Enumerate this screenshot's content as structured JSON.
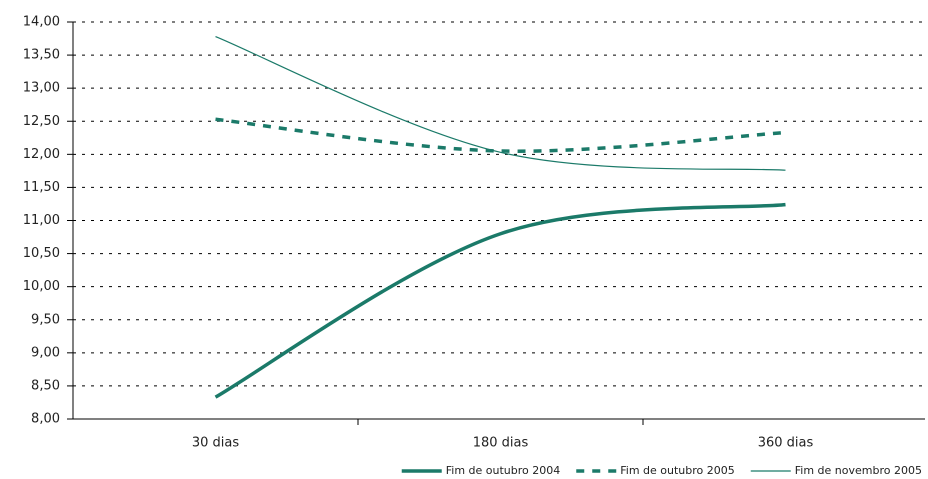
{
  "chart_data": {
    "type": "line",
    "categories": [
      "30 dias",
      "180 dias",
      "360 dias"
    ],
    "series": [
      {
        "name": "Fim de outubro 2004",
        "color": "#1b7a69",
        "style": "thick",
        "values": [
          8.33,
          10.8,
          11.24
        ]
      },
      {
        "name": "Fim de outubro 2005",
        "color": "#1b7a69",
        "style": "dashed",
        "values": [
          12.53,
          12.05,
          12.33
        ]
      },
      {
        "name": "Fim de novembro 2005",
        "color": "#1b7a69",
        "style": "thin",
        "values": [
          13.78,
          12.03,
          11.76
        ]
      }
    ],
    "ylim": [
      8,
      14
    ],
    "yticks": [
      {
        "value": 8,
        "label": "8,00"
      },
      {
        "value": 8.5,
        "label": "8,50"
      },
      {
        "value": 9,
        "label": "9,00"
      },
      {
        "value": 9.5,
        "label": "9,50"
      },
      {
        "value": 10,
        "label": "10,00"
      },
      {
        "value": 10.5,
        "label": "10,50"
      },
      {
        "value": 11,
        "label": "11,00"
      },
      {
        "value": 11.5,
        "label": "11,50"
      },
      {
        "value": 12,
        "label": "12,00"
      },
      {
        "value": 12.5,
        "label": "12,50"
      },
      {
        "value": 13,
        "label": "13,00"
      },
      {
        "value": 13.5,
        "label": "13,50"
      },
      {
        "value": 14,
        "label": "14,00"
      }
    ],
    "grid": true,
    "legend": "bottom-right"
  }
}
